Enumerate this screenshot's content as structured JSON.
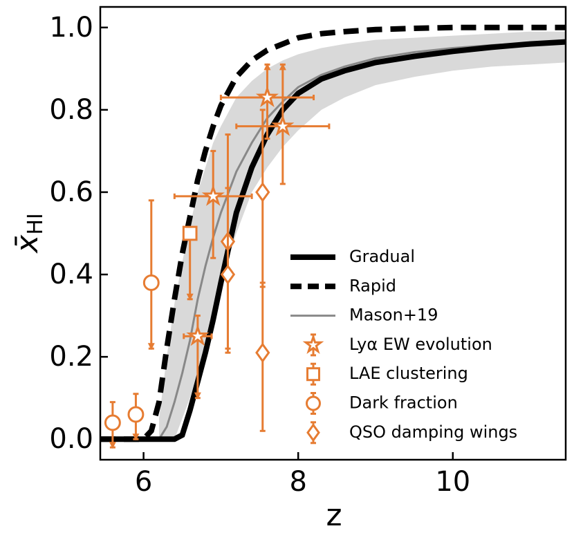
{
  "chart_data": {
    "type": "line",
    "xlabel": "z",
    "ylabel": {
      "main": "x̄",
      "sub": "HI"
    },
    "xlim": [
      5.44,
      11.46
    ],
    "ylim": [
      -0.05,
      1.05
    ],
    "xticks": [
      6,
      8,
      10
    ],
    "yticks": [
      {
        "value": 0,
        "label": "0.0"
      },
      0.2,
      0.4,
      0.6,
      0.8,
      {
        "value": 1,
        "label": "1.0"
      }
    ],
    "legend": "lower right",
    "x": [
      5.44,
      6.0,
      6.1,
      6.2,
      6.3,
      6.4,
      6.5,
      6.6,
      6.7,
      6.8,
      6.9,
      7.0,
      7.2,
      7.4,
      7.6,
      7.8,
      8.0,
      8.3,
      8.6,
      9.0,
      9.5,
      10,
      10.5,
      11,
      11.46
    ],
    "band": {
      "color": "#d9d9d9",
      "lower": [
        null,
        null,
        null,
        0,
        0,
        0,
        0.05,
        0.1,
        0.16,
        0.24,
        0.31,
        0.38,
        0.5,
        0.6,
        0.66,
        0.71,
        0.75,
        0.8,
        0.83,
        0.86,
        0.88,
        0.895,
        0.905,
        0.91,
        0.915
      ],
      "upper": [
        null,
        null,
        null,
        0.05,
        0.2,
        0.33,
        0.43,
        0.52,
        0.6,
        0.66,
        0.72,
        0.76,
        0.83,
        0.87,
        0.9,
        0.92,
        0.935,
        0.95,
        0.96,
        0.97,
        0.975,
        0.98,
        0.985,
        0.99,
        0.99
      ]
    },
    "series": [
      {
        "name": "Gradual",
        "color": "#000000",
        "width": 8,
        "dash": "none",
        "values": [
          0,
          0,
          0,
          0,
          0,
          0,
          0.01,
          0.07,
          0.14,
          0.21,
          0.29,
          0.38,
          0.55,
          0.66,
          0.74,
          0.8,
          0.84,
          0.875,
          0.895,
          0.915,
          0.93,
          0.942,
          0.952,
          0.96,
          0.965
        ]
      },
      {
        "name": "Rapid",
        "color": "#000000",
        "width": 8,
        "dash": "22,12",
        "values": [
          0,
          0,
          0.02,
          0.09,
          0.22,
          0.34,
          0.45,
          0.54,
          0.63,
          0.7,
          0.76,
          0.81,
          0.88,
          0.92,
          0.945,
          0.96,
          0.975,
          0.985,
          0.99,
          0.995,
          0.998,
          1,
          1,
          1,
          1
        ]
      },
      {
        "name": "Mason+19",
        "color": "#888888",
        "width": 3,
        "dash": "none",
        "values": [
          null,
          null,
          null,
          0,
          0.03,
          0.09,
          0.16,
          0.24,
          0.34,
          0.42,
          0.49,
          0.55,
          0.65,
          0.72,
          0.78,
          0.82,
          0.855,
          0.885,
          0.905,
          0.925,
          0.94,
          0.95,
          0.957,
          0.962,
          0.965
        ]
      }
    ],
    "points": [
      {
        "name": "Lyα EW evolution",
        "marker": "star",
        "color": "#e67c32",
        "x": [
          6.7,
          6.9,
          7.6,
          7.8
        ],
        "values": [
          0.25,
          0.59,
          0.83,
          0.76
        ],
        "xerr_low": [
          0.18,
          0.5,
          0.6,
          0.6
        ],
        "xerr_high": [
          0.18,
          0.5,
          0.6,
          0.6
        ],
        "yerr_low": [
          0.15,
          0.15,
          0.1,
          0.14
        ],
        "yerr_high": [
          0.05,
          0.11,
          0.08,
          0.15
        ],
        "limit": [
          "down",
          null,
          "up",
          "up"
        ]
      },
      {
        "name": "LAE clustering",
        "marker": "square",
        "color": "#e67c32",
        "x": [
          6.6
        ],
        "values": [
          0.5
        ],
        "yerr_low": [
          0.16
        ],
        "yerr_high": [
          0
        ],
        "limit": [
          "down"
        ]
      },
      {
        "name": "Dark fraction",
        "marker": "circle",
        "color": "#e67c32",
        "x": [
          5.6,
          5.9,
          6.1
        ],
        "values": [
          0.04,
          0.06,
          0.38
        ],
        "yerr_low": [
          0.06,
          0.06,
          0.16
        ],
        "yerr_high": [
          0.05,
          0.05,
          0.2
        ],
        "limit": [
          "down",
          "down",
          "down"
        ]
      },
      {
        "name": "QSO damping wings",
        "marker": "diamond",
        "color": "#e67c32",
        "x": [
          7.09,
          7.09,
          7.54,
          7.54
        ],
        "values": [
          0.48,
          0.4,
          0.6,
          0.21
        ],
        "yerr_low": [
          0.26,
          0.19,
          0.23,
          0.19
        ],
        "yerr_high": [
          0.26,
          0.21,
          0.2,
          0.17
        ],
        "limit": [
          null,
          null,
          null,
          null
        ]
      }
    ]
  }
}
